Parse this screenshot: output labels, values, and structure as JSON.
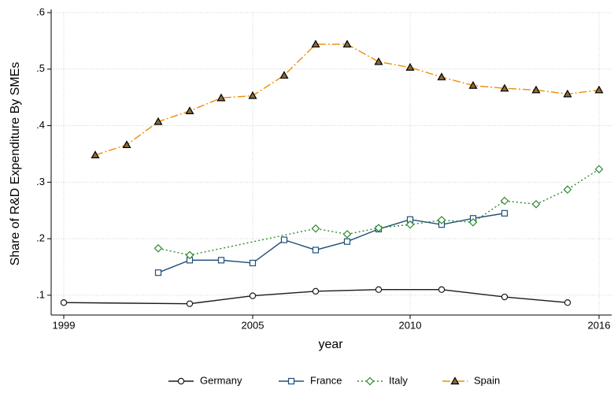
{
  "chart_data": {
    "type": "line",
    "x_label": "year",
    "y_label": "Share of R&D Expenditure By SMEs",
    "xlim": [
      1998.6,
      2016.4
    ],
    "xticks": [
      1999,
      2005,
      2010,
      2016
    ],
    "ylim": [
      0.065,
      0.6
    ],
    "yticks": [
      {
        "value": 0.1,
        "label": ".1"
      },
      {
        "value": 0.2,
        "label": ".2"
      },
      {
        "value": 0.3,
        "label": ".3"
      },
      {
        "value": 0.4,
        "label": ".4"
      },
      {
        "value": 0.5,
        "label": ".5"
      },
      {
        "value": 0.6,
        "label": ".6"
      }
    ],
    "grid": true,
    "legend": "bottom",
    "series": [
      {
        "name": "Germany",
        "color": "#1a1a1a",
        "marker": "circle",
        "dash": "solid",
        "x": [
          1999,
          2003,
          2005,
          2007,
          2009,
          2011,
          2013,
          2015
        ],
        "values": [
          0.087,
          0.085,
          0.099,
          0.107,
          0.11,
          0.11,
          0.097,
          0.087
        ]
      },
      {
        "name": "France",
        "color": "#1f4e79",
        "marker": "square",
        "dash": "solid",
        "x": [
          2002,
          2003,
          2004,
          2005,
          2006,
          2007,
          2008,
          2009,
          2010,
          2011,
          2012,
          2013
        ],
        "values": [
          0.14,
          0.162,
          0.162,
          0.157,
          0.198,
          0.18,
          0.195,
          0.217,
          0.234,
          0.225,
          0.236,
          0.245
        ]
      },
      {
        "name": "Italy",
        "color": "#2e8b2e",
        "marker": "diamond",
        "dash": "dot",
        "x": [
          2002,
          2003,
          2007,
          2008,
          2009,
          2010,
          2011,
          2012,
          2013,
          2014,
          2015,
          2016
        ],
        "values": [
          0.183,
          0.171,
          0.218,
          0.208,
          0.219,
          0.225,
          0.233,
          0.229,
          0.267,
          0.261,
          0.287,
          0.323
        ]
      },
      {
        "name": "Spain",
        "color": "#f08c00",
        "marker": "triangle",
        "dash": "dashdot",
        "x": [
          2000,
          2001,
          2002,
          2003,
          2004,
          2005,
          2006,
          2007,
          2008,
          2009,
          2010,
          2011,
          2012,
          2013,
          2014,
          2015,
          2016
        ],
        "values": [
          0.348,
          0.366,
          0.407,
          0.426,
          0.449,
          0.453,
          0.489,
          0.544,
          0.544,
          0.513,
          0.503,
          0.486,
          0.471,
          0.466,
          0.463,
          0.456,
          0.463
        ]
      }
    ]
  }
}
